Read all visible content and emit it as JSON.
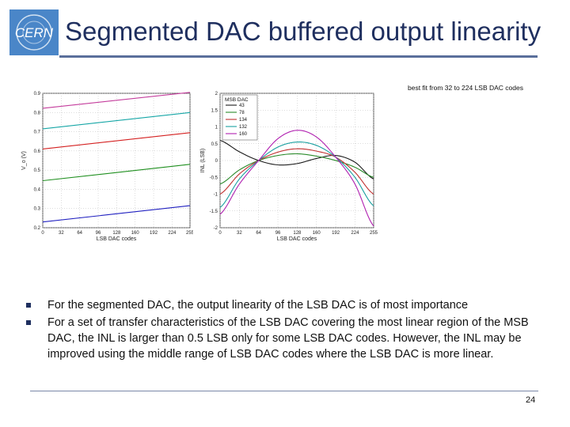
{
  "slide": {
    "logo_text": "CERN",
    "title": "Segmented DAC buffered output linearity",
    "fit_note": "best fit from 32 to 224 LSB DAC codes",
    "bullets": [
      "For the segmented DAC, the output linearity of the LSB DAC is of most importance",
      "For a set of transfer characteristics of the LSB DAC covering the most linear region of the MSB DAC, the INL is larger than 0.5 LSB only for some LSB DAC codes. However, the INL may be improved using the middle range of LSB DAC codes where the LSB DAC is more linear."
    ],
    "page_number": "24",
    "colors": {
      "title": "#1f2f5f",
      "rule": "#5a6f9b",
      "logo": "#4a86c8"
    }
  },
  "chart_data": [
    {
      "type": "line",
      "xlabel": "LSB DAC codes",
      "ylabel": "V_o (V)",
      "xlim": [
        0,
        255
      ],
      "ylim": [
        0.2,
        0.9
      ],
      "xticks": [
        "0",
        "32",
        "64",
        "96",
        "128",
        "160",
        "192",
        "224",
        "255"
      ],
      "yticks": [
        "0.2",
        "0.3",
        "0.4",
        "0.5",
        "0.6",
        "0.7",
        "0.8",
        "0.9"
      ],
      "grid": true,
      "series": [
        {
          "color": "#c43c9c",
          "x": [
            0,
            255
          ],
          "y": [
            0.822,
            0.905
          ]
        },
        {
          "color": "#16a6a6",
          "x": [
            0,
            255
          ],
          "y": [
            0.715,
            0.8
          ]
        },
        {
          "color": "#d42020",
          "x": [
            0,
            255
          ],
          "y": [
            0.61,
            0.695
          ]
        },
        {
          "color": "#1f8f1f",
          "x": [
            0,
            255
          ],
          "y": [
            0.445,
            0.53
          ]
        },
        {
          "color": "#2020c0",
          "x": [
            0,
            255
          ],
          "y": [
            0.23,
            0.315
          ]
        }
      ]
    },
    {
      "type": "line",
      "xlabel": "LSB DAC codes",
      "ylabel": "INL (LSB)",
      "xlim": [
        0,
        255
      ],
      "ylim": [
        -2,
        2
      ],
      "xticks": [
        "0",
        "32",
        "64",
        "96",
        "128",
        "160",
        "192",
        "224",
        "255"
      ],
      "yticks": [
        "-2",
        "-1.5",
        "-1",
        "-0.5",
        "0",
        "0.5",
        "1",
        "1.5",
        "2"
      ],
      "grid": true,
      "legend_title": "MSB DAC",
      "legend_position": "top-left",
      "series": [
        {
          "name": "43",
          "color": "#1a1a1a",
          "x": [
            0,
            32,
            64,
            96,
            128,
            160,
            192,
            224,
            255
          ],
          "y": [
            0.6,
            0.26,
            0.0,
            -0.13,
            -0.09,
            0.06,
            0.15,
            -0.05,
            -0.55
          ]
        },
        {
          "name": "78",
          "color": "#2a8a2a",
          "x": [
            0,
            32,
            64,
            96,
            128,
            160,
            192,
            224,
            255
          ],
          "y": [
            -0.7,
            -0.28,
            0.0,
            0.15,
            0.2,
            0.13,
            0.0,
            -0.2,
            -0.5
          ]
        },
        {
          "name": "134",
          "color": "#c03030",
          "x": [
            0,
            32,
            64,
            96,
            128,
            160,
            192,
            224,
            255
          ],
          "y": [
            -1.0,
            -0.4,
            0.0,
            0.25,
            0.35,
            0.28,
            0.1,
            -0.35,
            -1.0
          ]
        },
        {
          "name": "132",
          "color": "#1aa0a0",
          "x": [
            0,
            32,
            64,
            96,
            128,
            160,
            192,
            224,
            255
          ],
          "y": [
            -1.4,
            -0.55,
            0.0,
            0.4,
            0.55,
            0.45,
            0.1,
            -0.5,
            -1.35
          ]
        },
        {
          "name": "160",
          "color": "#b020b0",
          "x": [
            0,
            32,
            64,
            96,
            128,
            160,
            192,
            224,
            255
          ],
          "y": [
            -1.6,
            -0.7,
            0.0,
            0.65,
            0.9,
            0.7,
            0.1,
            -0.7,
            -1.95
          ]
        }
      ]
    }
  ]
}
